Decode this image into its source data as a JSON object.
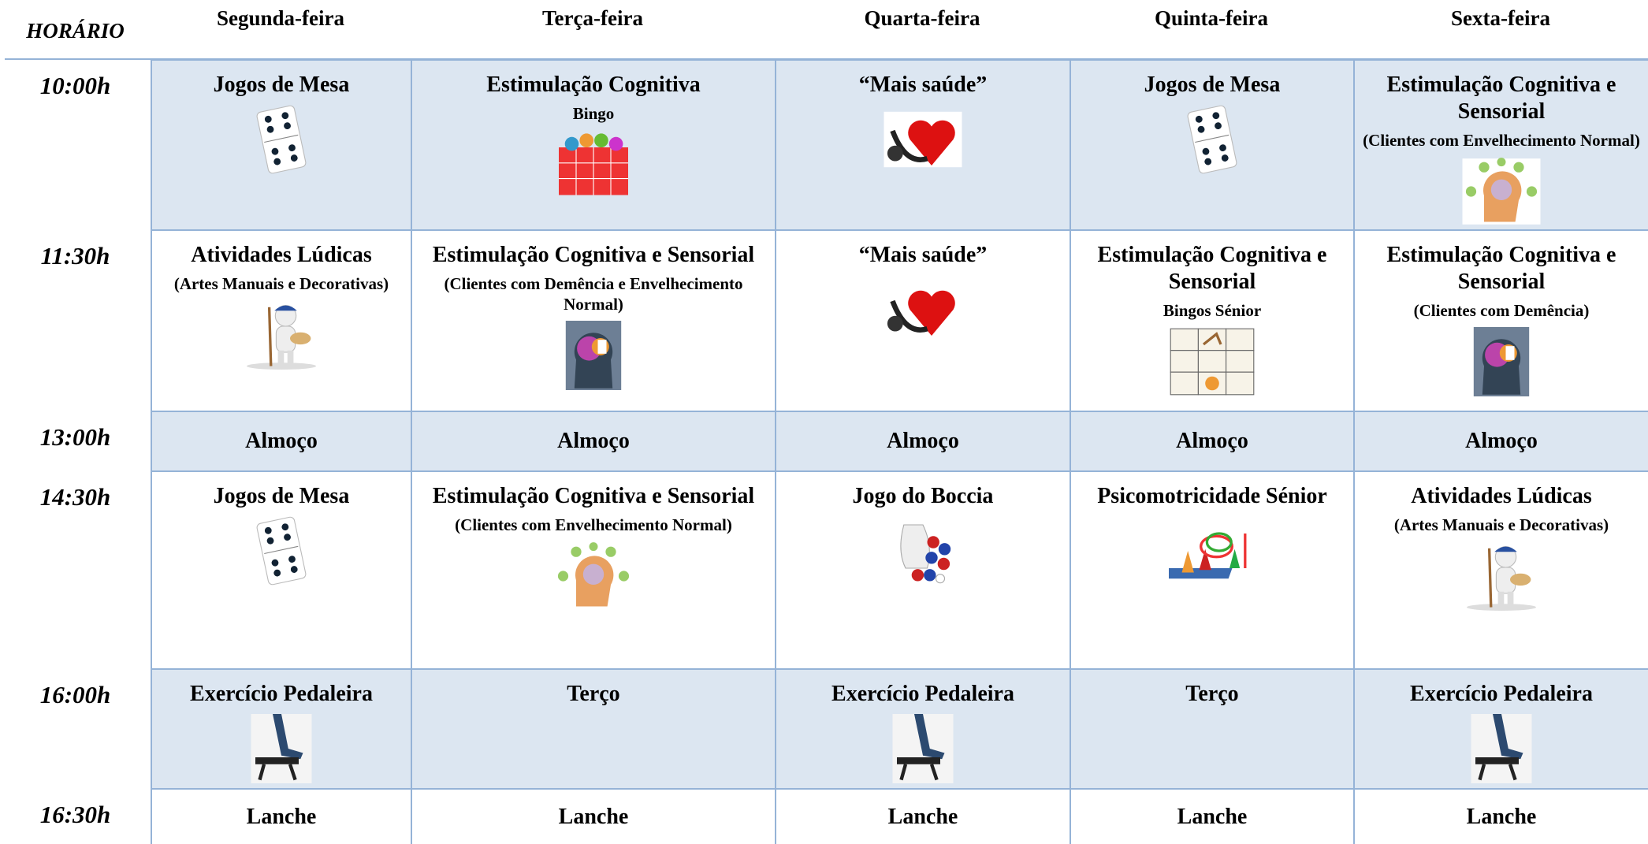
{
  "header": {
    "horario": "HORÁRIO",
    "days": [
      "Segunda-feira",
      "Terça-feira",
      "Quarta-feira",
      "Quinta-feira",
      "Sexta-feira"
    ]
  },
  "rows": [
    {
      "time": "10:00h",
      "cells": [
        {
          "title": "Jogos de Mesa"
        },
        {
          "title": "Estimulação Cognitiva",
          "note": "Bingo"
        },
        {
          "title": "“Mais saúde”"
        },
        {
          "title": "Jogos de Mesa"
        },
        {
          "title": "Estimulação Cognitiva e Sensorial",
          "note": "(Clientes com Envelhecimento Normal)"
        }
      ]
    },
    {
      "time": "11:30h",
      "cells": [
        {
          "title": "Atividades Lúdicas",
          "note": "(Artes Manuais e Decorativas)"
        },
        {
          "title": "Estimulação Cognitiva e Sensorial",
          "note": "(Clientes com Demência e Envelhecimento Normal)"
        },
        {
          "title": "“Mais saúde”"
        },
        {
          "title": "Estimulação Cognitiva e Sensorial",
          "note": "Bingos Sénior"
        },
        {
          "title": "Estimulação Cognitiva e Sensorial",
          "note": "(Clientes com Demência)"
        }
      ]
    },
    {
      "time": "13:00h",
      "cells": [
        {
          "title": "Almoço"
        },
        {
          "title": "Almoço"
        },
        {
          "title": "Almoço"
        },
        {
          "title": "Almoço"
        },
        {
          "title": "Almoço"
        }
      ]
    },
    {
      "time": "14:30h",
      "cells": [
        {
          "title": "Jogos de Mesa"
        },
        {
          "title": "Estimulação Cognitiva e Sensorial",
          "note": "(Clientes com Envelhecimento Normal)"
        },
        {
          "title": "Jogo do Boccia"
        },
        {
          "title": "Psicomotricidade Sénior"
        },
        {
          "title": "Atividades Lúdicas",
          "note": "(Artes Manuais e Decorativas)"
        }
      ]
    },
    {
      "time": "16:00h",
      "cells": [
        {
          "title": "Exercício Pedaleira"
        },
        {
          "title": "Terço"
        },
        {
          "title": "Exercício Pedaleira"
        },
        {
          "title": "Terço"
        },
        {
          "title": "Exercício Pedaleira"
        }
      ]
    },
    {
      "time": "16:30h",
      "cells": [
        {
          "title": "Lanche"
        },
        {
          "title": "Lanche"
        },
        {
          "title": "Lanche"
        },
        {
          "title": "Lanche"
        },
        {
          "title": "Lanche"
        }
      ]
    }
  ]
}
